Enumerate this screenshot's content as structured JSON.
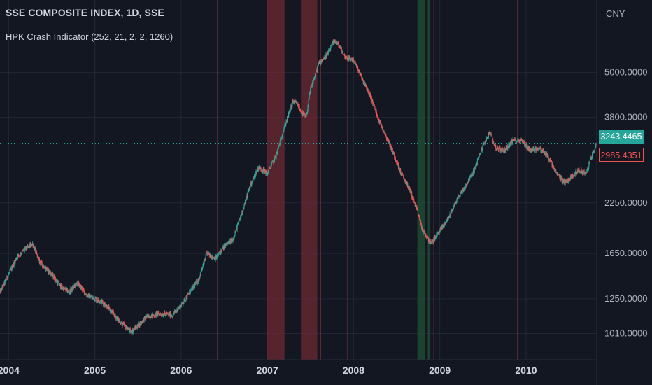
{
  "header": {
    "symbol_title": "SSE COMPOSITE INDEX, 1D, SSE",
    "indicator_title": "HPK Crash Indicator (252, 21, 2, 2, 1260)"
  },
  "price_scale": {
    "currency": "CNY",
    "last_price_label": "3243.4465",
    "indicator_price_label": "2985.4351"
  },
  "colors": {
    "background": "#131722",
    "grid": "#232735",
    "axis_text": "#b2b5be",
    "up_candle": "#26a69a",
    "down_candle": "#ef5350",
    "crash_band": "#6e2a30",
    "recovery_band": "#1f4a33",
    "last_price_line": "#26a69a"
  },
  "chart_data": {
    "type": "line",
    "scale": "log",
    "title": "SSE COMPOSITE INDEX, 1D, SSE",
    "x_range": [
      2003.9,
      2010.82
    ],
    "y_range": [
      860,
      7800
    ],
    "x_ticks": [
      "2004",
      "2005",
      "2006",
      "2007",
      "2008",
      "2009",
      "2010"
    ],
    "y_ticks": [
      "5000.0000",
      "3800.0000",
      "2250.0000",
      "1650.0000",
      "1250.0000",
      "1010.0000"
    ],
    "series": [
      {
        "x": [
          2003.9,
          2004.0,
          2004.1,
          2004.2,
          2004.28,
          2004.35,
          2004.5,
          2004.6,
          2004.7,
          2004.8,
          2004.9,
          2005.0,
          2005.1,
          2005.2,
          2005.3,
          2005.42,
          2005.5,
          2005.6,
          2005.75,
          2005.9,
          2006.0,
          2006.1,
          2006.2,
          2006.3,
          2006.4,
          2006.5,
          2006.6,
          2006.7,
          2006.8,
          2006.9,
          2007.0,
          2007.1,
          2007.2,
          2007.3,
          2007.35,
          2007.4,
          2007.45,
          2007.5,
          2007.6,
          2007.7,
          2007.78,
          2007.85,
          2007.9,
          2008.0,
          2008.1,
          2008.2,
          2008.3,
          2008.35,
          2008.45,
          2008.55,
          2008.65,
          2008.75,
          2008.8,
          2008.9,
          2009.0,
          2009.1,
          2009.2,
          2009.3,
          2009.4,
          2009.5,
          2009.58,
          2009.65,
          2009.75,
          2009.85,
          2009.95,
          2010.05,
          2010.15,
          2010.25,
          2010.35,
          2010.45,
          2010.5,
          2010.6,
          2010.7,
          2010.75,
          2010.82
        ],
        "y": [
          1300,
          1450,
          1620,
          1700,
          1750,
          1580,
          1450,
          1350,
          1300,
          1380,
          1280,
          1250,
          1220,
          1150,
          1080,
          1020,
          1060,
          1120,
          1140,
          1130,
          1200,
          1300,
          1400,
          1650,
          1600,
          1720,
          1800,
          2100,
          2500,
          2800,
          2700,
          3000,
          3600,
          4200,
          4100,
          3900,
          3800,
          4500,
          5300,
          5600,
          6100,
          5800,
          5500,
          5400,
          4800,
          4300,
          3700,
          3500,
          3100,
          2700,
          2450,
          2100,
          1900,
          1750,
          1900,
          2050,
          2300,
          2500,
          2750,
          3200,
          3450,
          3150,
          3100,
          3300,
          3300,
          3100,
          3150,
          3000,
          2700,
          2550,
          2600,
          2750,
          2700,
          2950,
          3243
        ]
      }
    ],
    "crash_bands": [
      [
        2006.995,
        2007.2
      ],
      [
        2007.39,
        2007.58
      ]
    ],
    "recovery_bands": [
      [
        2008.74,
        2008.83
      ],
      [
        2008.86,
        2008.89
      ]
    ],
    "indicator_markers": [
      2006.42,
      2007.62,
      2007.93,
      2008.93,
      2009.9
    ],
    "last_price": 3243.4465,
    "indicator_value": 2985.4351
  }
}
